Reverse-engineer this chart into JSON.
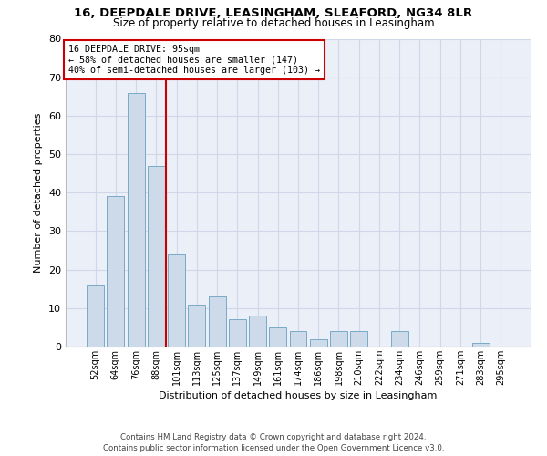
{
  "title1": "16, DEEPDALE DRIVE, LEASINGHAM, SLEAFORD, NG34 8LR",
  "title2": "Size of property relative to detached houses in Leasingham",
  "xlabel": "Distribution of detached houses by size in Leasingham",
  "ylabel": "Number of detached properties",
  "categories": [
    "52sqm",
    "64sqm",
    "76sqm",
    "88sqm",
    "101sqm",
    "113sqm",
    "125sqm",
    "137sqm",
    "149sqm",
    "161sqm",
    "174sqm",
    "186sqm",
    "198sqm",
    "210sqm",
    "222sqm",
    "234sqm",
    "246sqm",
    "259sqm",
    "271sqm",
    "283sqm",
    "295sqm"
  ],
  "values": [
    16,
    39,
    66,
    47,
    24,
    11,
    13,
    7,
    8,
    5,
    4,
    2,
    4,
    4,
    0,
    4,
    0,
    0,
    0,
    1,
    0
  ],
  "bar_color": "#ccdaea",
  "bar_edge_color": "#7aaac8",
  "vline_x_idx": 3.5,
  "vline_color": "#cc0000",
  "annotation_text": "16 DEEPDALE DRIVE: 95sqm\n← 58% of detached houses are smaller (147)\n40% of semi-detached houses are larger (103) →",
  "annotation_box_color": "#cc0000",
  "ylim": [
    0,
    80
  ],
  "yticks": [
    0,
    10,
    20,
    30,
    40,
    50,
    60,
    70,
    80
  ],
  "grid_color": "#d0d8e8",
  "background_color": "#eaeff8",
  "footer": "Contains HM Land Registry data © Crown copyright and database right 2024.\nContains public sector information licensed under the Open Government Licence v3.0."
}
